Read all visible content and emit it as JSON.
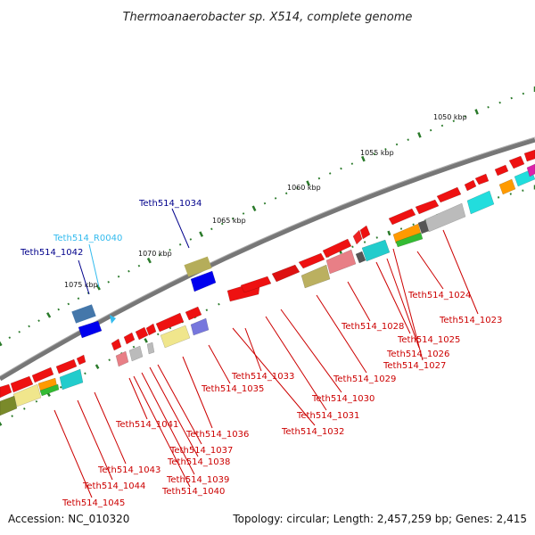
{
  "title": "Thermoanaerobacter sp. X514, complete genome",
  "footer": {
    "accession": "Accession: NC_010320",
    "summary": "Topology: circular; Length: 2,457,259 bp; Genes: 2,415"
  },
  "scale_labels": [
    "1050 kbp",
    "1055 kbp",
    "1060 kbp",
    "1065 kbp",
    "1070 kbp",
    "1075 kbp"
  ],
  "gene_labels_top": [
    {
      "name": "Teth514_1034",
      "color": "#00008b"
    },
    {
      "name": "Teth514_R0040",
      "color": "#33bbee"
    },
    {
      "name": "Teth514_1042",
      "color": "#00008b"
    }
  ],
  "gene_labels_bottom": [
    "Teth514_1024",
    "Teth514_1023",
    "Teth514_1028",
    "Teth514_1025",
    "Teth514_1026",
    "Teth514_1027",
    "Teth514_1033",
    "Teth514_1029",
    "Teth514_1035",
    "Teth514_1030",
    "Teth514_1031",
    "Teth514_1032",
    "Teth514_1041",
    "Teth514_1036",
    "Teth514_1037",
    "Teth514_1038",
    "Teth514_1043",
    "Teth514_1039",
    "Teth514_1044",
    "Teth514_1040",
    "Teth514_1045"
  ],
  "colors": {
    "cds": "#ee0000",
    "trna": "#33bbee",
    "backbone": "#777777",
    "ticks": "#2a7a2a",
    "label_red": "#cc0000"
  }
}
